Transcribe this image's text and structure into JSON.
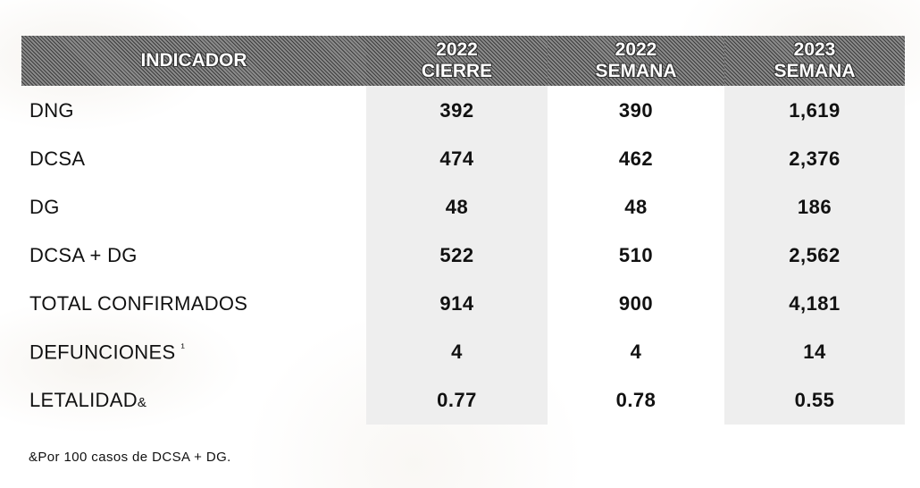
{
  "table": {
    "headers": [
      [
        "INDICADOR"
      ],
      [
        "2022",
        "CIERRE"
      ],
      [
        "2022",
        "SEMANA"
      ],
      [
        "2023",
        "SEMANA"
      ]
    ],
    "rows": [
      {
        "label": "DNG",
        "values": [
          "392",
          "390",
          "1,619"
        ]
      },
      {
        "label": "DCSA",
        "values": [
          "474",
          "462",
          "2,376"
        ]
      },
      {
        "label": "DG",
        "values": [
          "48",
          "48",
          "186"
        ]
      },
      {
        "label": "DCSA + DG",
        "values": [
          "522",
          "510",
          "2,562"
        ]
      },
      {
        "label": "TOTAL CONFIRMADOS",
        "values": [
          "914",
          "900",
          "4,181"
        ]
      },
      {
        "label": "DEFUNCIONES",
        "label_sup": "¹",
        "values": [
          "4",
          "4",
          "14"
        ]
      },
      {
        "label": "LETALIDAD",
        "label_suffix": "&",
        "values": [
          "0.77",
          "0.78",
          "0.55"
        ]
      }
    ]
  },
  "footnote": "&Por 100 casos de DCSA + DG.",
  "colors": {
    "header_bg": "#5c5c5c",
    "shaded_column": "#eeeeee",
    "text": "#111111"
  }
}
